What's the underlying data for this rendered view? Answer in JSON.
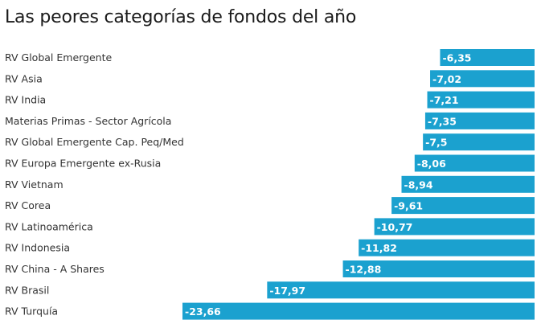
{
  "chart_data": {
    "type": "bar",
    "orientation": "horizontal",
    "title": "Las peores categorías de fondos del año",
    "xlabel": "",
    "ylabel": "",
    "grid": false,
    "legend": "none",
    "bar_color": "#1ba1cf",
    "xlim": [
      -23.66,
      0
    ],
    "categories": [
      "RV Global Emergente",
      "RV Asia",
      "RV India",
      "Materias Primas - Sector Agrícola",
      "RV Global Emergente Cap. Peq/Med",
      "RV Europa Emergente ex-Rusia",
      "RV Vietnam",
      "RV Corea",
      "RV Latinoamérica",
      "RV Indonesia",
      "RV China - A Shares",
      "RV Brasil",
      "RV Turquía"
    ],
    "values": [
      -6.35,
      -7.02,
      -7.21,
      -7.35,
      -7.5,
      -8.06,
      -8.94,
      -9.61,
      -10.77,
      -11.82,
      -12.88,
      -17.97,
      -23.66
    ],
    "value_labels": [
      "-6,35",
      "-7,02",
      "-7,21",
      "-7,35",
      "-7,5",
      "-8,06",
      "-8,94",
      "-9,61",
      "-10,77",
      "-11,82",
      "-12,88",
      "-17,97",
      "-23,66"
    ]
  }
}
